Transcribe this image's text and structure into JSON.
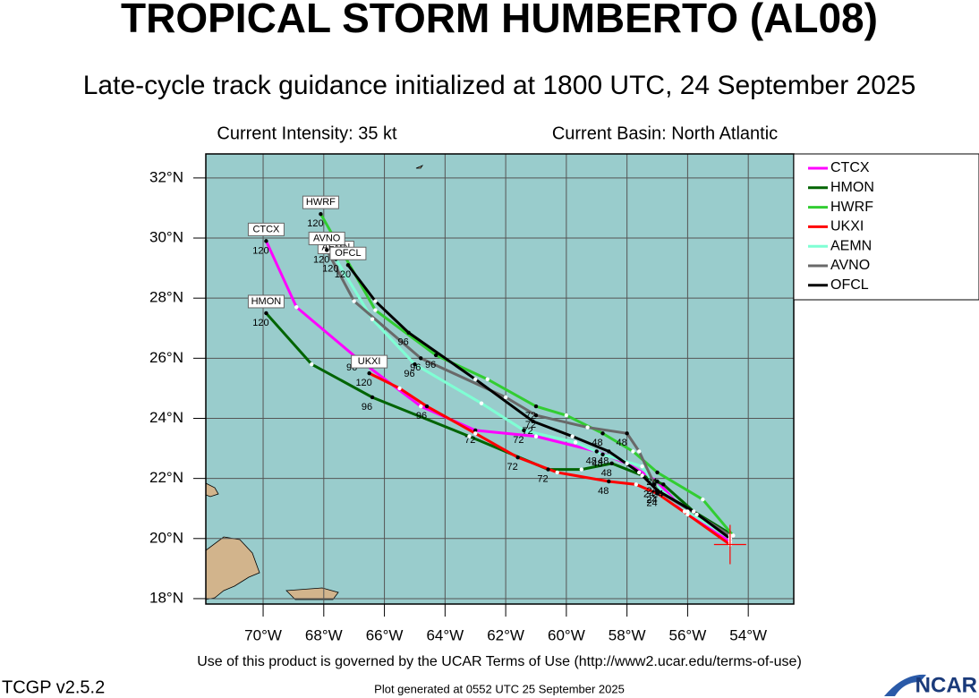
{
  "chart_data": {
    "type": "track",
    "title": "TROPICAL STORM HUMBERTO (AL08)",
    "subtitle": "Late-cycle track guidance initialized at 1800 UTC, 24 September 2025",
    "intensity": "Current Intensity: 35 kt",
    "basin": "Current Basin: North Atlantic",
    "terms": "Use of this product is governed by the UCAR Terms of Use (http://www2.ucar.edu/terms-of-use)",
    "version": "TCGP v2.5.2",
    "generated": "Plot generated at 0552 UTC   25 September 2025",
    "logo": "NCAR",
    "xlim": [
      -71.89,
      -52.5
    ],
    "ylim": [
      17.82,
      32.8
    ],
    "xticks": [
      {
        "value": -70,
        "label": "70°W"
      },
      {
        "value": -68,
        "label": "68°W"
      },
      {
        "value": -66,
        "label": "66°W"
      },
      {
        "value": -64,
        "label": "64°W"
      },
      {
        "value": -62,
        "label": "62°W"
      },
      {
        "value": -60,
        "label": "60°W"
      },
      {
        "value": -58,
        "label": "58°W"
      },
      {
        "value": -56,
        "label": "56°W"
      },
      {
        "value": -54,
        "label": "54°W"
      }
    ],
    "yticks": [
      {
        "value": 18,
        "label": "18°N"
      },
      {
        "value": 20,
        "label": "20°N"
      },
      {
        "value": 22,
        "label": "22°N"
      },
      {
        "value": 24,
        "label": "24°N"
      },
      {
        "value": 26,
        "label": "26°N"
      },
      {
        "value": 28,
        "label": "28°N"
      },
      {
        "value": 30,
        "label": "30°N"
      },
      {
        "value": 32,
        "label": "32°N"
      }
    ],
    "grid": true,
    "initial": {
      "x": -54.6,
      "value": 19.8,
      "color": "#ff0000"
    },
    "series": [
      {
        "name": "CTCX",
        "color": "#ff00ff",
        "x": [
          -54.6,
          -56.1,
          -57.0,
          -58.0,
          -59.0,
          -61.0,
          -63.0,
          -64.8,
          -66.9,
          -68.9,
          -69.9
        ],
        "values": [
          19.9,
          20.9,
          21.9,
          22.5,
          22.9,
          23.4,
          23.6,
          24.4,
          26.0,
          27.7,
          29.9
        ],
        "hour_labels": [
          null,
          null,
          "24",
          null,
          "48",
          null,
          "72",
          null,
          "96",
          null,
          "120"
        ]
      },
      {
        "name": "HMON",
        "color": "#006400",
        "x": [
          -54.5,
          -55.8,
          -56.8,
          -57.5,
          -58.5,
          -59.5,
          -60.6,
          -63.2,
          -66.4,
          -68.4,
          -69.9
        ],
        "values": [
          20.1,
          20.9,
          21.8,
          22.1,
          22.5,
          22.3,
          22.3,
          23.4,
          24.7,
          25.8,
          27.5
        ],
        "hour_labels": [
          null,
          null,
          "24",
          null,
          "48",
          null,
          "72",
          null,
          "96",
          null,
          "120"
        ]
      },
      {
        "name": "HWRF",
        "color": "#32cd32",
        "x": [
          -54.5,
          -55.5,
          -57.0,
          -57.8,
          -58.8,
          -60.0,
          -61.0,
          -62.6,
          -64.3,
          -66.3,
          -68.1
        ],
        "values": [
          20.1,
          21.3,
          22.2,
          22.9,
          23.5,
          24.1,
          24.4,
          25.3,
          26.1,
          27.6,
          30.8
        ],
        "hour_labels": [
          null,
          null,
          "24",
          null,
          "48",
          null,
          "72",
          null,
          "96",
          null,
          "120"
        ]
      },
      {
        "name": "UKXI",
        "color": "#ff0000",
        "x": [
          -54.6,
          -56.0,
          -57.0,
          -57.7,
          -58.6,
          -60.3,
          -61.6,
          -63.0,
          -64.6,
          -65.5,
          -66.5
        ],
        "values": [
          19.8,
          20.8,
          21.5,
          21.8,
          21.9,
          22.2,
          22.7,
          23.5,
          24.4,
          25.0,
          25.5
        ],
        "hour_labels": [
          null,
          null,
          "24",
          null,
          "48",
          null,
          "72",
          null,
          "96",
          null,
          "120"
        ]
      },
      {
        "name": "AEMN",
        "color": "#7fffd4",
        "x": [
          -54.6,
          -56.0,
          -57.1,
          -57.5,
          -58.8,
          -59.7,
          -61.4,
          -62.8,
          -65.0,
          -66.4,
          -67.6
        ],
        "values": [
          20.0,
          20.9,
          21.8,
          22.4,
          22.8,
          23.2,
          23.6,
          24.5,
          25.8,
          27.3,
          29.3
        ],
        "hour_labels": [
          null,
          null,
          "24",
          null,
          "48",
          null,
          "72",
          null,
          "96",
          null,
          "120"
        ]
      },
      {
        "name": "AVNO",
        "color": "#696969",
        "x": [
          -54.6,
          -55.7,
          -57.0,
          -57.6,
          -58.0,
          -59.3,
          -61.0,
          -62.0,
          -64.8,
          -67.0,
          -67.9
        ],
        "values": [
          20.1,
          20.8,
          21.6,
          22.9,
          23.5,
          23.7,
          24.1,
          24.7,
          26.0,
          27.9,
          29.6
        ],
        "hour_labels": [
          null,
          null,
          "24",
          null,
          "48",
          null,
          "72",
          null,
          "96",
          null,
          "120"
        ]
      },
      {
        "name": "OFCL",
        "color": "#000000",
        "x": [
          -54.6,
          -55.8,
          -57.0,
          -57.6,
          -58.6,
          -59.8,
          -61.1,
          -63.0,
          -65.2,
          -66.3,
          -67.2
        ],
        "values": [
          20.0,
          20.9,
          21.6,
          22.2,
          22.9,
          23.4,
          23.9,
          25.3,
          26.85,
          27.9,
          29.1
        ],
        "hour_labels": [
          null,
          null,
          "24",
          null,
          "48",
          null,
          "72",
          null,
          "96",
          null,
          "120"
        ]
      }
    ]
  }
}
